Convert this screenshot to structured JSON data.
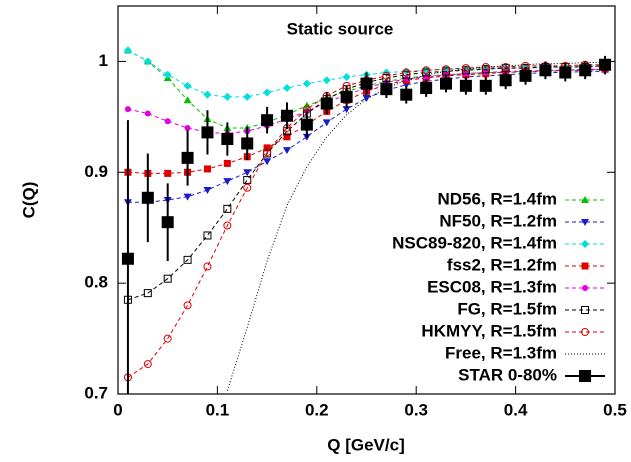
{
  "chart_data": {
    "type": "line",
    "title": "Static source",
    "x_label": "Q [GeV/c]",
    "y_label": "C(Q)",
    "xlim": [
      0,
      0.5
    ],
    "ylim": [
      0.7,
      1.05
    ],
    "xticks": [
      0,
      0.1,
      0.2,
      0.3,
      0.4,
      0.5
    ],
    "yticks": [
      0.7,
      0.8,
      0.9,
      1
    ],
    "legend": "lower right",
    "x": [
      0.01,
      0.03,
      0.05,
      0.07,
      0.09,
      0.11,
      0.13,
      0.15,
      0.17,
      0.19,
      0.21,
      0.23,
      0.25,
      0.27,
      0.29,
      0.31,
      0.33,
      0.35,
      0.37,
      0.39,
      0.41,
      0.43,
      0.45,
      0.47,
      0.49
    ],
    "series": [
      {
        "name": "ND56, R=1.4fm",
        "color": "#00c000",
        "marker": "triangle-up",
        "dash": "dashed",
        "values": [
          1.01,
          1.0,
          0.985,
          0.965,
          0.948,
          0.94,
          0.94,
          0.945,
          0.952,
          0.96,
          0.967,
          0.973,
          0.978,
          0.982,
          0.985,
          0.987,
          0.988,
          0.989,
          0.99,
          0.99,
          0.991,
          0.991,
          0.992,
          0.992,
          0.993
        ]
      },
      {
        "name": "NF50, R=1.2fm",
        "color": "#1a1ad0",
        "marker": "triangle-down",
        "dash": "dashed",
        "values": [
          0.873,
          0.873,
          0.875,
          0.878,
          0.884,
          0.892,
          0.9,
          0.91,
          0.92,
          0.932,
          0.945,
          0.957,
          0.967,
          0.974,
          0.979,
          0.982,
          0.984,
          0.986,
          0.987,
          0.988,
          0.989,
          0.99,
          0.99,
          0.991,
          0.991
        ]
      },
      {
        "name": "NSC89-820, R=1.4fm",
        "color": "#00dede",
        "marker": "diamond",
        "dash": "dashed",
        "values": [
          1.01,
          1.0,
          0.988,
          0.978,
          0.97,
          0.968,
          0.968,
          0.972,
          0.976,
          0.98,
          0.983,
          0.986,
          0.988,
          0.99,
          0.991,
          0.992,
          0.993,
          0.993,
          0.994,
          0.994,
          0.995,
          0.995,
          0.995,
          0.996,
          0.996
        ]
      },
      {
        "name": "fss2, R=1.2fm",
        "color": "#e00000",
        "marker": "square",
        "dash": "dashed",
        "values": [
          0.9,
          0.899,
          0.899,
          0.9,
          0.903,
          0.908,
          0.914,
          0.922,
          0.932,
          0.943,
          0.955,
          0.965,
          0.973,
          0.979,
          0.983,
          0.985,
          0.987,
          0.988,
          0.989,
          0.99,
          0.991,
          0.991,
          0.992,
          0.992,
          0.993
        ]
      },
      {
        "name": "ESC08, R=1.3fm",
        "color": "#e000e0",
        "marker": "pentagon",
        "dash": "dashed",
        "values": [
          0.957,
          0.953,
          0.946,
          0.94,
          0.936,
          0.935,
          0.937,
          0.942,
          0.948,
          0.955,
          0.963,
          0.97,
          0.976,
          0.981,
          0.984,
          0.986,
          0.988,
          0.989,
          0.99,
          0.991,
          0.991,
          0.992,
          0.992,
          0.993,
          0.993
        ]
      },
      {
        "name": "FG, R=1.5fm",
        "color": "#000000",
        "marker": "open-square",
        "dash": "dashed",
        "values": [
          0.785,
          0.791,
          0.804,
          0.821,
          0.843,
          0.867,
          0.893,
          0.917,
          0.937,
          0.953,
          0.966,
          0.975,
          0.981,
          0.985,
          0.988,
          0.99,
          0.991,
          0.992,
          0.993,
          0.994,
          0.994,
          0.995,
          0.995,
          0.995,
          0.996
        ]
      },
      {
        "name": "HKMYY, R=1.5fm",
        "color": "#e00000",
        "marker": "open-circle",
        "dash": "dashed",
        "values": [
          0.715,
          0.727,
          0.75,
          0.78,
          0.815,
          0.852,
          0.886,
          0.918,
          0.94,
          0.957,
          0.969,
          0.978,
          0.983,
          0.987,
          0.99,
          0.992,
          0.993,
          0.994,
          0.995,
          0.995,
          0.996,
          0.996,
          0.996,
          0.997,
          0.997
        ]
      },
      {
        "name": "Free, R=1.3fm",
        "color": "#000000",
        "marker": "none",
        "dash": "dotted",
        "values": [
          null,
          null,
          null,
          null,
          null,
          0.703,
          0.76,
          0.82,
          0.87,
          0.905,
          0.932,
          0.952,
          0.966,
          0.976,
          0.983,
          0.988,
          0.991,
          0.993,
          0.995,
          0.996,
          0.997,
          0.998,
          0.998,
          0.999,
          0.999
        ]
      },
      {
        "name": "STAR 0-80%",
        "color": "#000000",
        "marker": "big-square",
        "dash": "none",
        "values": [
          0.822,
          0.877,
          0.855,
          0.913,
          0.936,
          0.93,
          0.926,
          0.947,
          0.951,
          0.943,
          0.962,
          0.968,
          0.98,
          0.975,
          0.97,
          0.976,
          0.98,
          0.978,
          0.978,
          0.983,
          0.987,
          0.992,
          0.99,
          0.992,
          0.997
        ],
        "errors": [
          0.125,
          0.04,
          0.035,
          0.025,
          0.02,
          0.015,
          0.015,
          0.012,
          0.012,
          0.012,
          0.01,
          0.01,
          0.01,
          0.008,
          0.008,
          0.008,
          0.008,
          0.008,
          0.008,
          0.008,
          0.008,
          0.008,
          0.008,
          0.008,
          0.008
        ]
      }
    ]
  }
}
